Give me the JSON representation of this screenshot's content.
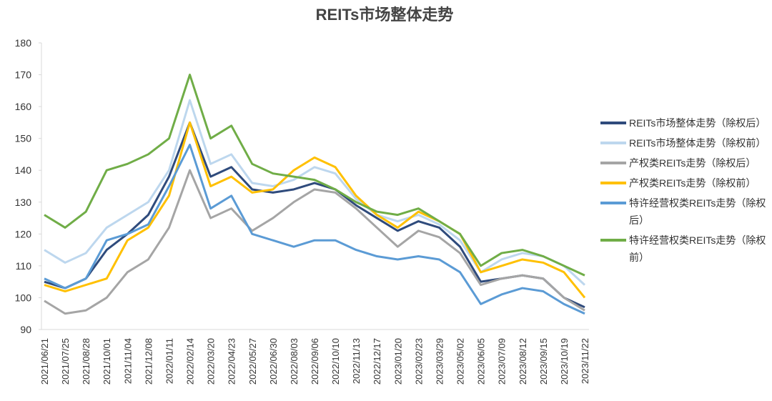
{
  "chart_data": {
    "type": "line",
    "title": "REITs市场整体走势",
    "categories": [
      "2021/06/21",
      "2021/07/25",
      "2021/08/28",
      "2021/10/01",
      "2021/11/04",
      "2021/12/08",
      "2022/01/11",
      "2022/02/14",
      "2022/03/20",
      "2022/04/23",
      "2022/05/27",
      "2022/06/30",
      "2022/08/03",
      "2022/09/06",
      "2022/10/10",
      "2022/11/13",
      "2022/12/17",
      "2023/01/20",
      "2023/02/23",
      "2023/03/29",
      "2023/05/02",
      "2023/06/05",
      "2023/07/09",
      "2023/08/12",
      "2023/09/15",
      "2023/10/19",
      "2023/11/22"
    ],
    "series": [
      {
        "name": "REITs市场整体走势（除权后）",
        "color": "#2f4b7c",
        "values": [
          105,
          103,
          106,
          115,
          120,
          126,
          138,
          155,
          138,
          141,
          134,
          133,
          134,
          136,
          134,
          129,
          125,
          121,
          124,
          122,
          116,
          105,
          106,
          107,
          106,
          100,
          97
        ]
      },
      {
        "name": "REITs市场整体走势（除权前）",
        "color": "#bdd7ee",
        "values": [
          115,
          111,
          114,
          122,
          126,
          130,
          140,
          162,
          142,
          145,
          136,
          135,
          137,
          141,
          139,
          131,
          126,
          124,
          126,
          123,
          118,
          108,
          112,
          114,
          113,
          110,
          104
        ]
      },
      {
        "name": "产权类REITs走势（除权后）",
        "color": "#a5a5a5",
        "values": [
          99,
          95,
          96,
          100,
          108,
          112,
          122,
          140,
          125,
          128,
          121,
          125,
          130,
          134,
          133,
          128,
          122,
          116,
          121,
          119,
          114,
          104,
          106,
          107,
          106,
          100,
          96
        ]
      },
      {
        "name": "产权类REITs走势（除权前）",
        "color": "#ffc000",
        "values": [
          104,
          102,
          104,
          106,
          118,
          122,
          132,
          155,
          135,
          138,
          133,
          134,
          140,
          144,
          141,
          132,
          126,
          122,
          127,
          124,
          120,
          108,
          110,
          112,
          111,
          108,
          100
        ]
      },
      {
        "name": "特许经营权类REITs走势（除权后）",
        "color": "#5b9bd5",
        "values": [
          106,
          103,
          106,
          118,
          120,
          123,
          135,
          148,
          128,
          132,
          120,
          118,
          116,
          118,
          118,
          115,
          113,
          112,
          113,
          112,
          108,
          98,
          101,
          103,
          102,
          98,
          95
        ]
      },
      {
        "name": "特许经营权类REITs走势（除权前）",
        "color": "#70ad47",
        "values": [
          126,
          122,
          127,
          140,
          142,
          145,
          150,
          170,
          150,
          154,
          142,
          139,
          138,
          137,
          134,
          130,
          127,
          126,
          128,
          124,
          120,
          110,
          114,
          115,
          113,
          110,
          107
        ]
      }
    ],
    "ylim": [
      90,
      180
    ],
    "yticks": [
      90,
      100,
      110,
      120,
      130,
      140,
      150,
      160,
      170,
      180
    ],
    "legend": "right"
  }
}
